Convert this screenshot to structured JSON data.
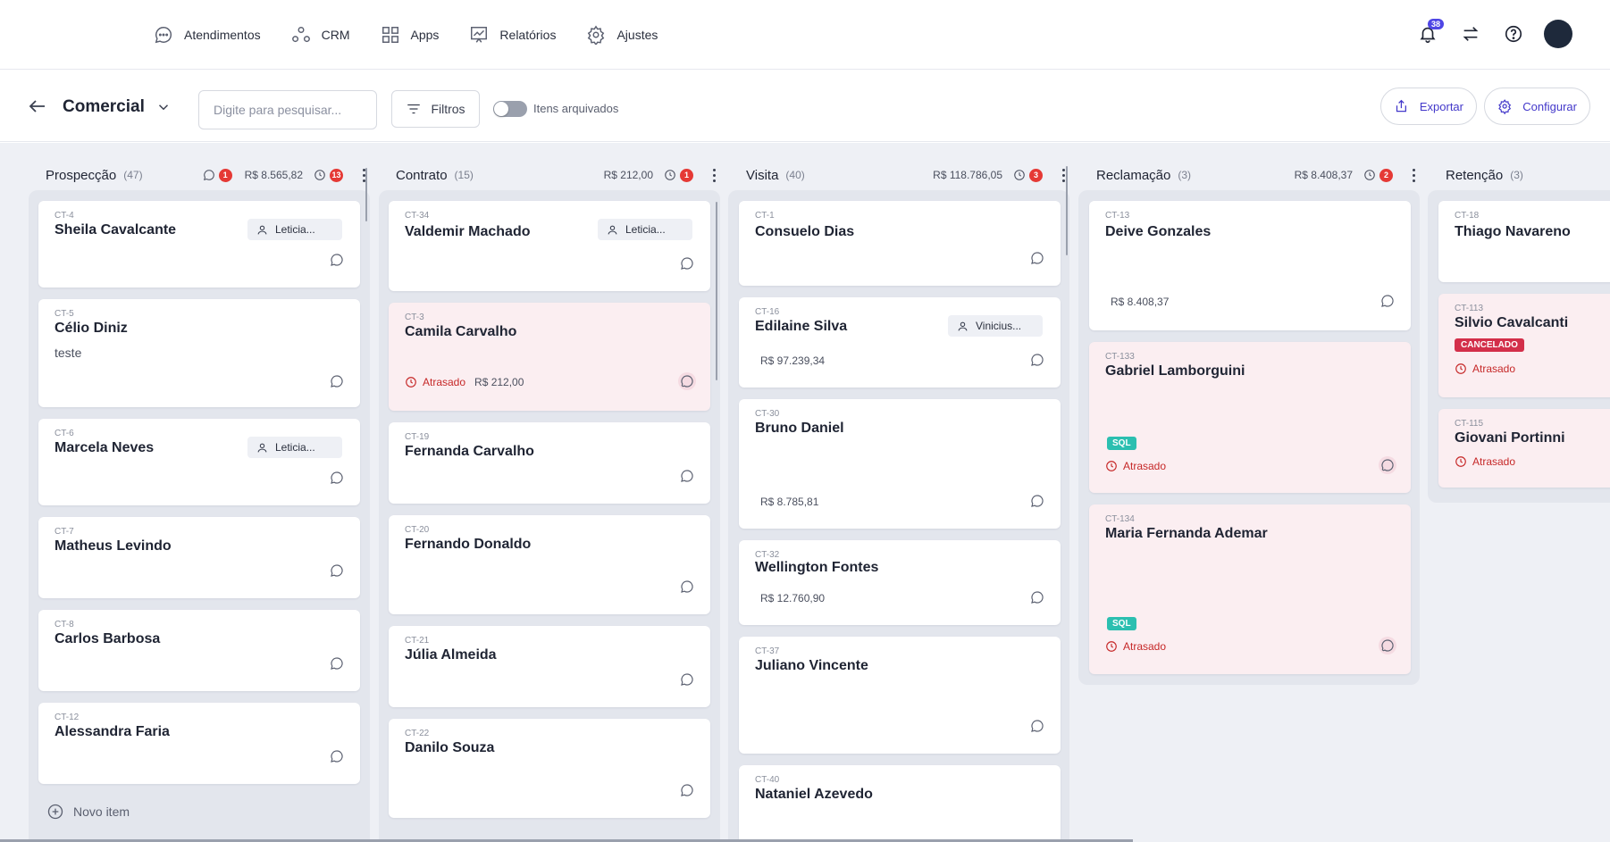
{
  "nav": {
    "items": [
      {
        "label": "Atendimentos",
        "icon": "chat-icon"
      },
      {
        "label": "CRM",
        "icon": "crm-icon"
      },
      {
        "label": "Apps",
        "icon": "apps-grid-icon"
      },
      {
        "label": "Relatórios",
        "icon": "reports-chart-icon"
      },
      {
        "label": "Ajustes",
        "icon": "gear-icon"
      }
    ],
    "notifications_count": "38"
  },
  "toolbar": {
    "title": "Comercial",
    "search_placeholder": "Digite para pesquisar...",
    "filters_label": "Filtros",
    "archived_label": "Itens arquivados",
    "archived_on": false,
    "export_label": "Exportar",
    "config_label": "Configurar"
  },
  "colors": {
    "accent": "#4338ca",
    "late_bg": "#fbeef1",
    "danger": "#e53935",
    "sql": "#2bbfb0"
  },
  "columns": [
    {
      "name": "Prospecção",
      "count": "(47)",
      "comments": "1",
      "amount": "R$ 8.565,82",
      "late": "13",
      "new_item_label": "Novo item",
      "cards": [
        {
          "id": "CT-4",
          "name": "Sheila Cavalcante",
          "assignee": "Leticia..."
        },
        {
          "id": "CT-5",
          "name": "Célio Diniz",
          "subtitle": "teste"
        },
        {
          "id": "CT-6",
          "name": "Marcela Neves",
          "assignee": "Leticia..."
        },
        {
          "id": "CT-7",
          "name": "Matheus Levindo"
        },
        {
          "id": "CT-8",
          "name": "Carlos Barbosa"
        },
        {
          "id": "CT-12",
          "name": "Alessandra Faria"
        }
      ]
    },
    {
      "name": "Contrato",
      "count": "(15)",
      "amount": "R$ 212,00",
      "late": "1",
      "cards": [
        {
          "id": "CT-34",
          "name": "Valdemir Machado",
          "assignee": "Leticia..."
        },
        {
          "id": "CT-3",
          "name": "Camila Carvalho",
          "late_label": "Atrasado",
          "amount": "R$ 212,00"
        },
        {
          "id": "CT-19",
          "name": "Fernanda Carvalho"
        },
        {
          "id": "CT-20",
          "name": "Fernando Donaldo"
        },
        {
          "id": "CT-21",
          "name": "Júlia Almeida"
        },
        {
          "id": "CT-22",
          "name": "Danilo Souza"
        }
      ]
    },
    {
      "name": "Visita",
      "count": "(40)",
      "amount": "R$ 118.786,05",
      "late": "3",
      "cards": [
        {
          "id": "CT-1",
          "name": "Consuelo Dias"
        },
        {
          "id": "CT-16",
          "name": "Edilaine Silva",
          "assignee": "Vinicius...",
          "amount": "R$ 97.239,34"
        },
        {
          "id": "CT-30",
          "name": "Bruno Daniel",
          "amount": "R$ 8.785,81"
        },
        {
          "id": "CT-32",
          "name": "Wellington Fontes",
          "amount": "R$ 12.760,90"
        },
        {
          "id": "CT-37",
          "name": "Juliano Vincente"
        },
        {
          "id": "CT-40",
          "name": "Nataniel Azevedo"
        }
      ]
    },
    {
      "name": "Reclamação",
      "count": "(3)",
      "amount": "R$ 8.408,37",
      "late": "2",
      "cards": [
        {
          "id": "CT-13",
          "name": "Deive Gonzales",
          "amount": "R$ 8.408,37"
        },
        {
          "id": "CT-133",
          "name": "Gabriel Lamborguini",
          "tag": "SQL",
          "late_label": "Atrasado"
        },
        {
          "id": "CT-134",
          "name": "Maria Fernanda Ademar",
          "tag": "SQL",
          "late_label": "Atrasado"
        }
      ]
    },
    {
      "name": "Retenção",
      "count": "(3)",
      "cards": [
        {
          "id": "CT-18",
          "name": "Thiago Navareno"
        },
        {
          "id": "CT-113",
          "name": "Silvio Cavalcanti",
          "status": "CANCELADO",
          "late_label": "Atrasado"
        },
        {
          "id": "CT-115",
          "name": "Giovani Portinni",
          "late_label": "Atrasado"
        }
      ]
    }
  ]
}
